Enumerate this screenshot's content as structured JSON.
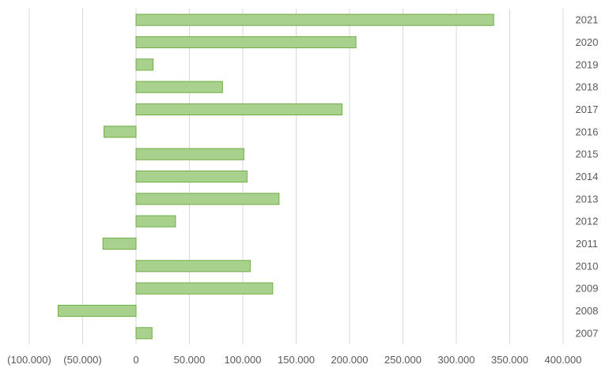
{
  "chart_data": {
    "type": "bar",
    "orientation": "horizontal",
    "categories": [
      "2007",
      "2008",
      "2009",
      "2010",
      "2011",
      "2012",
      "2013",
      "2014",
      "2015",
      "2016",
      "2017",
      "2018",
      "2019",
      "2020",
      "2021"
    ],
    "values": [
      15000,
      -73000,
      128000,
      107000,
      -31000,
      37000,
      134000,
      104000,
      101000,
      -30000,
      193000,
      81000,
      16000,
      206000,
      335000
    ],
    "xlim": [
      -100000,
      400000
    ],
    "xticks": [
      -100000,
      -50000,
      0,
      50000,
      100000,
      150000,
      200000,
      250000,
      300000,
      350000,
      400000
    ],
    "xtick_labels": [
      "(100.000)",
      "(50.000)",
      "0",
      "50.000",
      "100.000",
      "150.000",
      "200.000",
      "250.000",
      "300.000",
      "350.000",
      "400.000"
    ],
    "category_axis_position": "right",
    "grid": true,
    "legend": false,
    "title": "",
    "xlabel": "",
    "ylabel": "",
    "colors": {
      "bar_fill": "#a9d18e",
      "bar_stroke": "#70ad47",
      "grid": "#d9d9d9",
      "text": "#595959"
    }
  }
}
